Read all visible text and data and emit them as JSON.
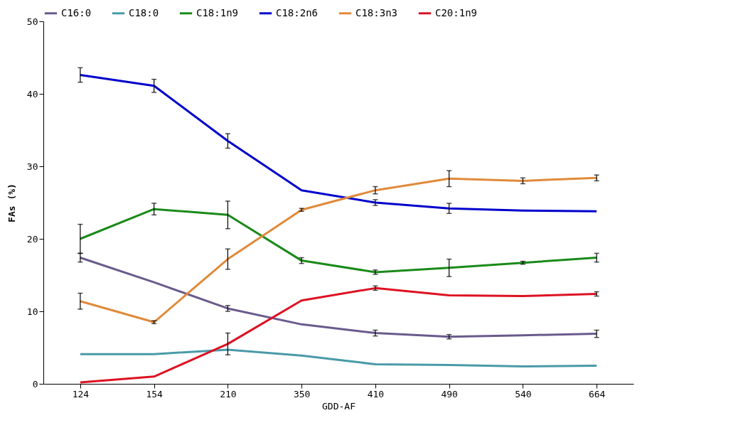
{
  "chart_data": {
    "type": "line",
    "xlabel": "GDD-AF",
    "ylabel": "FAs (%)",
    "categories": [
      "124",
      "154",
      "210",
      "350",
      "410",
      "490",
      "540",
      "664"
    ],
    "ylim": [
      0,
      50
    ],
    "yticks": [
      0,
      10,
      20,
      30,
      40,
      50
    ],
    "grid": false,
    "legend": "top",
    "marker": "none",
    "line_style": "solid",
    "series": [
      {
        "name": "C16:0",
        "color": "#6a5a8c",
        "values": [
          17.4,
          14.0,
          10.4,
          8.2,
          7.0,
          6.5,
          6.7,
          6.9
        ],
        "errors": [
          0.6,
          null,
          0.4,
          null,
          0.4,
          0.3,
          null,
          0.5
        ]
      },
      {
        "name": "C18:0",
        "color": "#4a9aa8",
        "values": [
          4.1,
          4.1,
          4.7,
          3.9,
          2.7,
          2.6,
          2.4,
          2.5
        ],
        "errors": [
          null,
          null,
          null,
          null,
          null,
          null,
          null,
          null
        ]
      },
      {
        "name": "C18:1n9",
        "color": "#1a8a1a",
        "values": [
          20.0,
          24.1,
          23.3,
          17.0,
          15.4,
          16.0,
          16.7,
          17.4
        ],
        "errors": [
          2.0,
          0.8,
          1.9,
          0.4,
          0.3,
          1.2,
          0.2,
          0.6
        ]
      },
      {
        "name": "C18:2n6",
        "color": "#0000cc",
        "values": [
          42.6,
          41.1,
          33.5,
          26.7,
          25.0,
          24.2,
          23.9,
          23.8
        ],
        "errors": [
          1.0,
          0.9,
          1.0,
          null,
          0.4,
          0.7,
          null,
          null
        ]
      },
      {
        "name": "C18:3n3",
        "color": "#e08a3a",
        "values": [
          11.4,
          8.5,
          17.2,
          24.0,
          26.7,
          28.3,
          28.0,
          28.4
        ],
        "errors": [
          1.1,
          0.2,
          1.4,
          0.2,
          0.5,
          1.1,
          0.4,
          0.4
        ]
      },
      {
        "name": "C20:1n9",
        "color": "#dd1122",
        "values": [
          0.2,
          1.0,
          5.5,
          11.5,
          13.2,
          12.2,
          12.1,
          12.4
        ],
        "errors": [
          null,
          null,
          1.5,
          null,
          0.3,
          null,
          null,
          0.3
        ]
      }
    ]
  }
}
